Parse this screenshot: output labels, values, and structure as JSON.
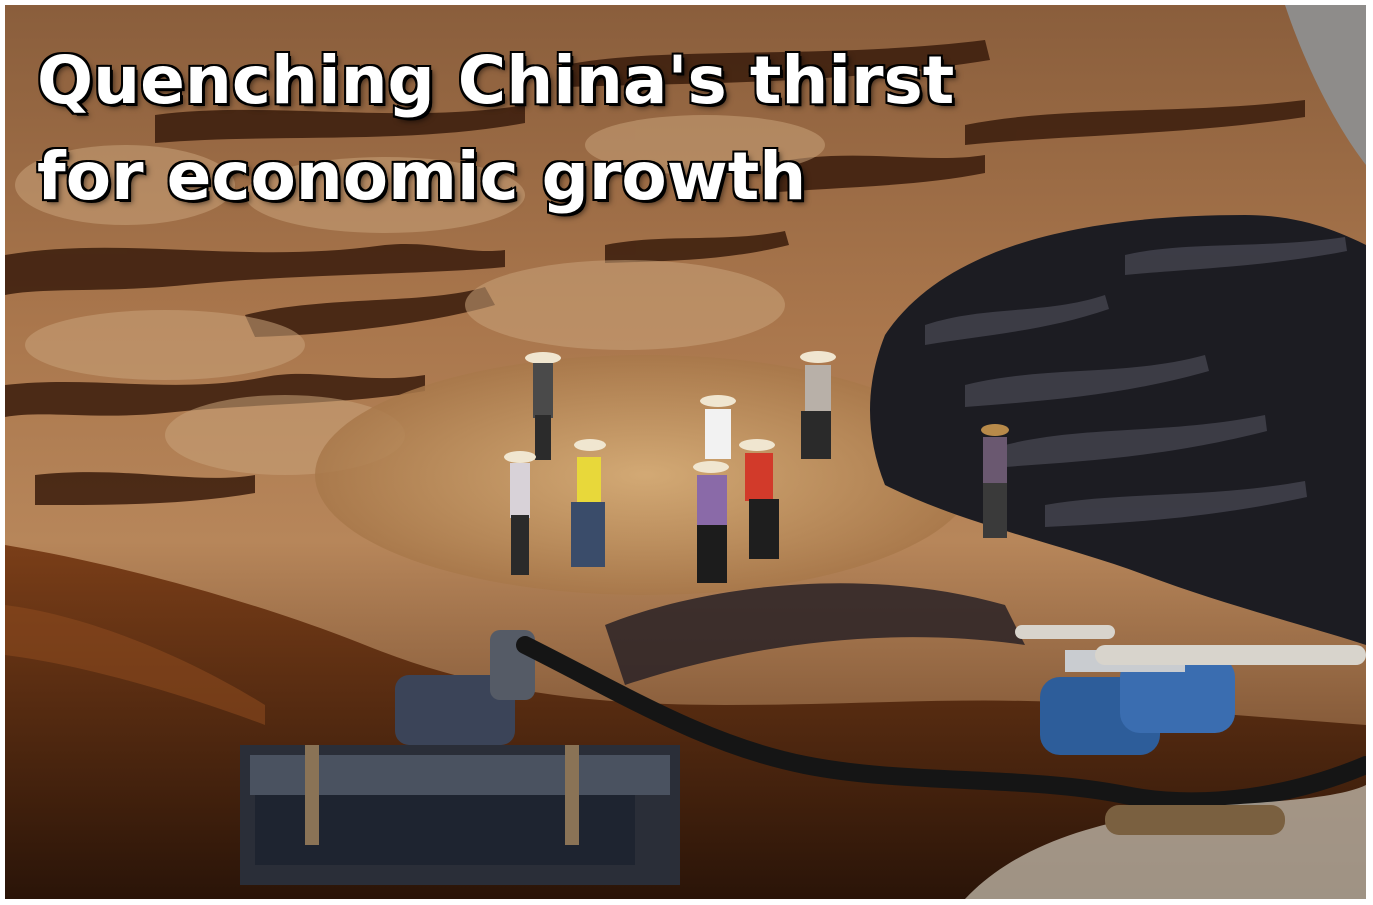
{
  "headline": {
    "line1": "Quenching China's thirst",
    "line2": "for economic growth"
  },
  "photo": {
    "subject": "workers cleaning polluted river",
    "palette": {
      "sediment": "#b07a4a",
      "dark_water": "#2a160c",
      "mud_light": "#c89a6a",
      "tarp": "#1c1c22",
      "drum_blue": "#2d5d9a"
    }
  }
}
